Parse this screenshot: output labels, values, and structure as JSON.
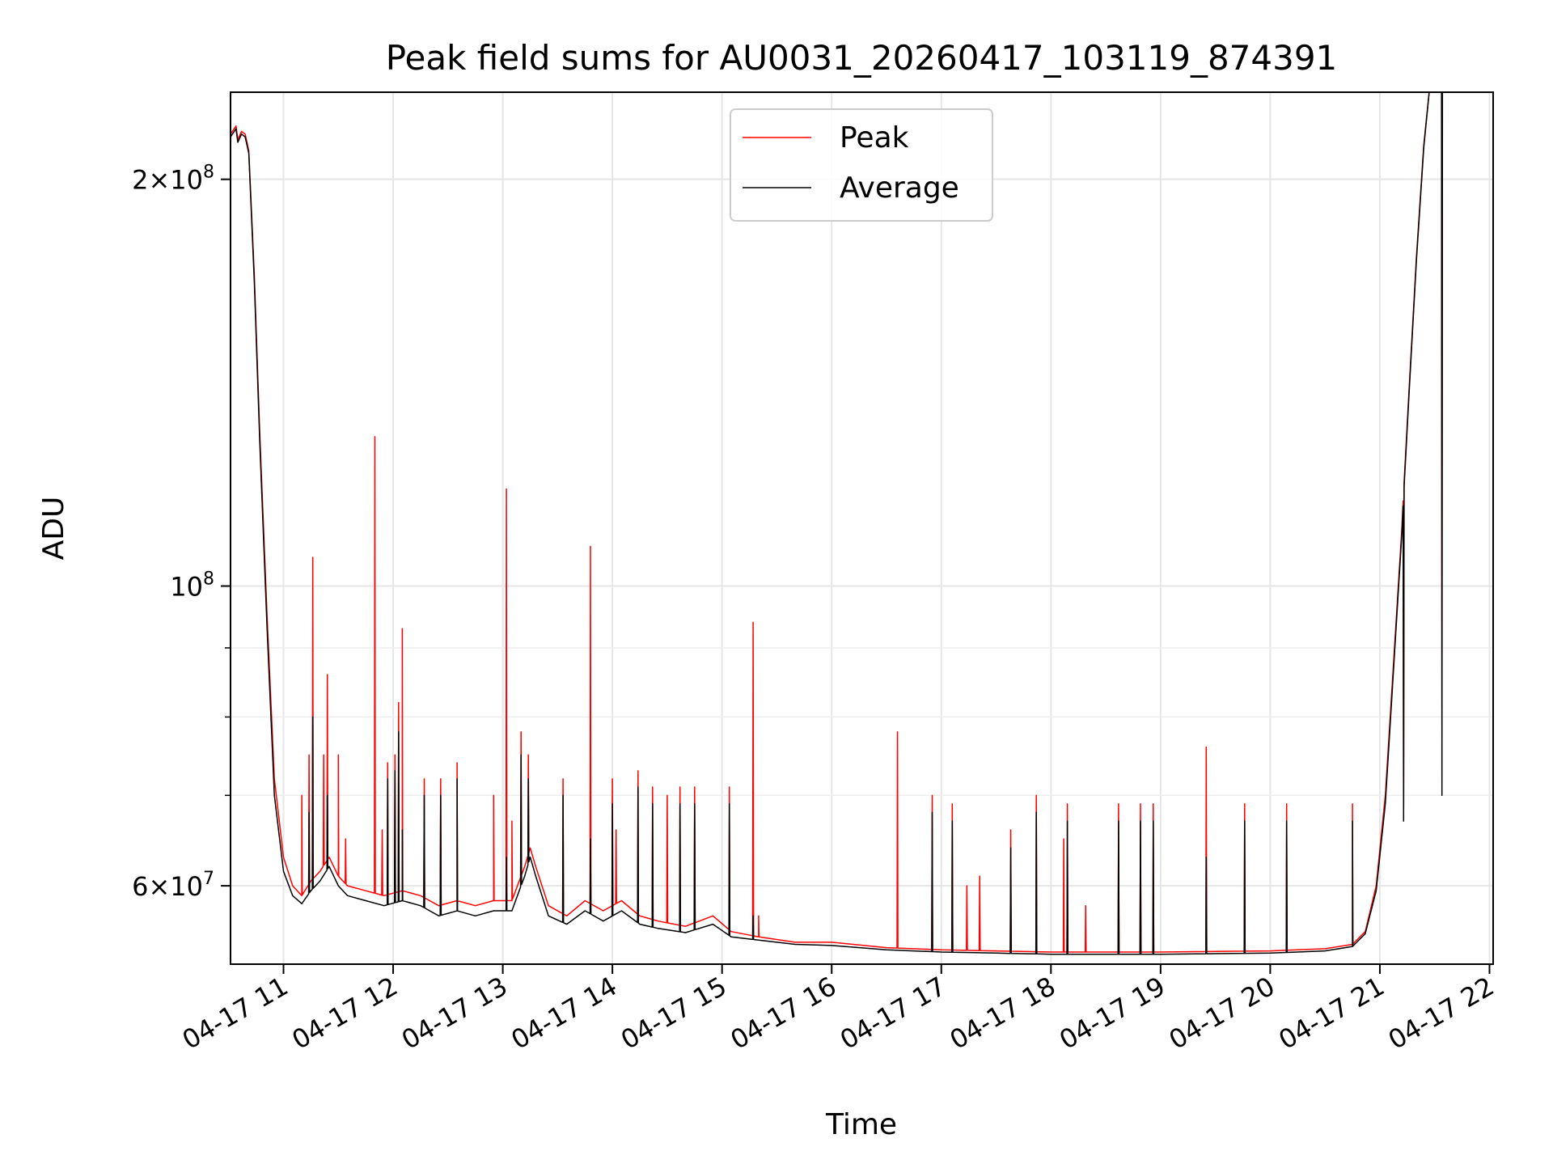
{
  "chart_data": {
    "type": "line",
    "title": "Peak field sums for AU0031_20260417_103119_874391",
    "xlabel": "Time",
    "ylabel": "ADU",
    "yscale": "log",
    "grid": true,
    "legend_placement": "upper-center",
    "xlim": [
      "2026-04-17 10:31",
      "2026-04-17 22:02"
    ],
    "ylim": [
      52500000,
      232000000
    ],
    "x_ticks": [
      {
        "value": "2026-04-17 11:00",
        "label": "04-17 11"
      },
      {
        "value": "2026-04-17 12:00",
        "label": "04-17 12"
      },
      {
        "value": "2026-04-17 13:00",
        "label": "04-17 13"
      },
      {
        "value": "2026-04-17 14:00",
        "label": "04-17 14"
      },
      {
        "value": "2026-04-17 15:00",
        "label": "04-17 15"
      },
      {
        "value": "2026-04-17 16:00",
        "label": "04-17 16"
      },
      {
        "value": "2026-04-17 17:00",
        "label": "04-17 17"
      },
      {
        "value": "2026-04-17 18:00",
        "label": "04-17 18"
      },
      {
        "value": "2026-04-17 19:00",
        "label": "04-17 19"
      },
      {
        "value": "2026-04-17 20:00",
        "label": "04-17 20"
      },
      {
        "value": "2026-04-17 21:00",
        "label": "04-17 21"
      },
      {
        "value": "2026-04-17 22:00",
        "label": "04-17 22"
      }
    ],
    "y_major_ticks": [
      {
        "value": 60000000,
        "mant": "6",
        "exp": "7"
      },
      {
        "value": 100000000,
        "mant": "",
        "exp": "8"
      },
      {
        "value": 200000000,
        "mant": "2",
        "exp": "8"
      }
    ],
    "y_minor_ticks": [
      70000000,
      80000000,
      90000000
    ],
    "series": [
      {
        "name": "Peak",
        "color": "#ff0000",
        "baseline": [
          [
            "2026-04-17 10:31",
            216000000
          ],
          [
            "2026-04-17 10:34",
            219000000
          ],
          [
            "2026-04-17 10:35",
            214000000
          ],
          [
            "2026-04-17 10:37",
            217000000
          ],
          [
            "2026-04-17 10:39",
            216000000
          ],
          [
            "2026-04-17 10:41",
            210000000
          ],
          [
            "2026-04-17 10:44",
            170000000
          ],
          [
            "2026-04-17 10:47",
            130000000
          ],
          [
            "2026-04-17 10:51",
            95000000
          ],
          [
            "2026-04-17 10:55",
            72000000
          ],
          [
            "2026-04-17 11:00",
            63000000
          ],
          [
            "2026-04-17 11:05",
            60000000
          ],
          [
            "2026-04-17 11:10",
            59000000
          ],
          [
            "2026-04-17 11:15",
            60500000
          ],
          [
            "2026-04-17 11:20",
            61500000
          ],
          [
            "2026-04-17 11:25",
            63000000
          ],
          [
            "2026-04-17 11:30",
            61000000
          ],
          [
            "2026-04-17 11:35",
            60000000
          ],
          [
            "2026-04-17 11:45",
            59500000
          ],
          [
            "2026-04-17 11:55",
            59000000
          ],
          [
            "2026-04-17 12:05",
            59500000
          ],
          [
            "2026-04-17 12:15",
            59000000
          ],
          [
            "2026-04-17 12:25",
            58000000
          ],
          [
            "2026-04-17 12:35",
            58500000
          ],
          [
            "2026-04-17 12:45",
            58000000
          ],
          [
            "2026-04-17 12:55",
            58500000
          ],
          [
            "2026-04-17 13:05",
            58500000
          ],
          [
            "2026-04-17 13:12",
            62000000
          ],
          [
            "2026-04-17 13:15",
            64000000
          ],
          [
            "2026-04-17 13:18",
            62000000
          ],
          [
            "2026-04-17 13:25",
            58000000
          ],
          [
            "2026-04-17 13:35",
            57000000
          ],
          [
            "2026-04-17 13:45",
            58500000
          ],
          [
            "2026-04-17 13:55",
            57500000
          ],
          [
            "2026-04-17 14:05",
            58500000
          ],
          [
            "2026-04-17 14:15",
            57000000
          ],
          [
            "2026-04-17 14:25",
            56500000
          ],
          [
            "2026-04-17 14:40",
            56000000
          ],
          [
            "2026-04-17 14:55",
            57000000
          ],
          [
            "2026-04-17 15:05",
            55500000
          ],
          [
            "2026-04-17 15:20",
            55000000
          ],
          [
            "2026-04-17 15:40",
            54500000
          ],
          [
            "2026-04-17 16:00",
            54500000
          ],
          [
            "2026-04-17 16:30",
            54000000
          ],
          [
            "2026-04-17 17:00",
            53800000
          ],
          [
            "2026-04-17 17:30",
            53700000
          ],
          [
            "2026-04-17 18:00",
            53600000
          ],
          [
            "2026-04-17 19:00",
            53600000
          ],
          [
            "2026-04-17 20:00",
            53700000
          ],
          [
            "2026-04-17 20:30",
            53900000
          ],
          [
            "2026-04-17 20:45",
            54300000
          ],
          [
            "2026-04-17 20:52",
            55500000
          ],
          [
            "2026-04-17 20:58",
            60000000
          ],
          [
            "2026-04-17 21:03",
            70000000
          ],
          [
            "2026-04-17 21:08",
            90000000
          ],
          [
            "2026-04-17 21:12",
            110000000
          ],
          [
            "2026-04-17 21:16",
            140000000
          ],
          [
            "2026-04-17 21:20",
            175000000
          ],
          [
            "2026-04-17 21:24",
            212000000
          ],
          [
            "2026-04-17 21:27",
            232000000
          ]
        ],
        "spikes": [
          [
            "2026-04-17 11:10",
            70000000
          ],
          [
            "2026-04-17 11:14",
            75000000
          ],
          [
            "2026-04-17 11:16",
            105000000
          ],
          [
            "2026-04-17 11:22",
            75000000
          ],
          [
            "2026-04-17 11:24",
            86000000
          ],
          [
            "2026-04-17 11:30",
            75000000
          ],
          [
            "2026-04-17 11:34",
            65000000
          ],
          [
            "2026-04-17 11:50",
            129000000
          ],
          [
            "2026-04-17 11:54",
            66000000
          ],
          [
            "2026-04-17 11:57",
            74000000
          ],
          [
            "2026-04-17 12:01",
            75000000
          ],
          [
            "2026-04-17 12:03",
            82000000
          ],
          [
            "2026-04-17 12:05",
            93000000
          ],
          [
            "2026-04-17 12:17",
            72000000
          ],
          [
            "2026-04-17 12:26",
            72000000
          ],
          [
            "2026-04-17 12:35",
            74000000
          ],
          [
            "2026-04-17 12:55",
            70000000
          ],
          [
            "2026-04-17 13:02",
            118000000
          ],
          [
            "2026-04-17 13:05",
            67000000
          ],
          [
            "2026-04-17 13:10",
            78000000
          ],
          [
            "2026-04-17 13:14",
            75000000
          ],
          [
            "2026-04-17 13:33",
            72000000
          ],
          [
            "2026-04-17 13:48",
            107000000
          ],
          [
            "2026-04-17 14:00",
            72000000
          ],
          [
            "2026-04-17 14:02",
            66000000
          ],
          [
            "2026-04-17 14:14",
            73000000
          ],
          [
            "2026-04-17 14:22",
            71000000
          ],
          [
            "2026-04-17 14:30",
            70000000
          ],
          [
            "2026-04-17 14:37",
            71000000
          ],
          [
            "2026-04-17 14:45",
            71000000
          ],
          [
            "2026-04-17 15:04",
            71000000
          ],
          [
            "2026-04-17 15:17",
            94000000
          ],
          [
            "2026-04-17 15:20",
            57000000
          ],
          [
            "2026-04-17 16:36",
            78000000
          ],
          [
            "2026-04-17 16:55",
            70000000
          ],
          [
            "2026-04-17 17:06",
            69000000
          ],
          [
            "2026-04-17 17:14",
            60000000
          ],
          [
            "2026-04-17 17:21",
            61000000
          ],
          [
            "2026-04-17 17:38",
            66000000
          ],
          [
            "2026-04-17 17:52",
            70000000
          ],
          [
            "2026-04-17 18:07",
            65000000
          ],
          [
            "2026-04-17 18:09",
            69000000
          ],
          [
            "2026-04-17 18:19",
            58000000
          ],
          [
            "2026-04-17 18:37",
            69000000
          ],
          [
            "2026-04-17 18:49",
            69000000
          ],
          [
            "2026-04-17 18:56",
            69000000
          ],
          [
            "2026-04-17 19:25",
            76000000
          ],
          [
            "2026-04-17 19:46",
            69000000
          ],
          [
            "2026-04-17 20:09",
            69000000
          ],
          [
            "2026-04-17 20:45",
            69000000
          ],
          [
            "2026-04-17 21:13",
            69000000
          ],
          [
            "2026-04-17 21:34",
            81000000
          ]
        ]
      },
      {
        "name": "Average",
        "color": "#000000",
        "baseline": [
          [
            "2026-04-17 10:31",
            215000000
          ],
          [
            "2026-04-17 10:34",
            218000000
          ],
          [
            "2026-04-17 10:35",
            213000000
          ],
          [
            "2026-04-17 10:37",
            216000000
          ],
          [
            "2026-04-17 10:39",
            215000000
          ],
          [
            "2026-04-17 10:41",
            209000000
          ],
          [
            "2026-04-17 10:44",
            168000000
          ],
          [
            "2026-04-17 10:47",
            128000000
          ],
          [
            "2026-04-17 10:51",
            93000000
          ],
          [
            "2026-04-17 10:55",
            70000000
          ],
          [
            "2026-04-17 11:00",
            61500000
          ],
          [
            "2026-04-17 11:05",
            59000000
          ],
          [
            "2026-04-17 11:10",
            58200000
          ],
          [
            "2026-04-17 11:15",
            59500000
          ],
          [
            "2026-04-17 11:20",
            60500000
          ],
          [
            "2026-04-17 11:25",
            62000000
          ],
          [
            "2026-04-17 11:30",
            60000000
          ],
          [
            "2026-04-17 11:35",
            59000000
          ],
          [
            "2026-04-17 11:45",
            58500000
          ],
          [
            "2026-04-17 11:55",
            58000000
          ],
          [
            "2026-04-17 12:05",
            58500000
          ],
          [
            "2026-04-17 12:15",
            58000000
          ],
          [
            "2026-04-17 12:25",
            57000000
          ],
          [
            "2026-04-17 12:35",
            57500000
          ],
          [
            "2026-04-17 12:45",
            57000000
          ],
          [
            "2026-04-17 12:55",
            57500000
          ],
          [
            "2026-04-17 13:05",
            57500000
          ],
          [
            "2026-04-17 13:12",
            61000000
          ],
          [
            "2026-04-17 13:15",
            63000000
          ],
          [
            "2026-04-17 13:18",
            61000000
          ],
          [
            "2026-04-17 13:25",
            57000000
          ],
          [
            "2026-04-17 13:35",
            56200000
          ],
          [
            "2026-04-17 13:45",
            57500000
          ],
          [
            "2026-04-17 13:55",
            56500000
          ],
          [
            "2026-04-17 14:05",
            57500000
          ],
          [
            "2026-04-17 14:15",
            56200000
          ],
          [
            "2026-04-17 14:25",
            55800000
          ],
          [
            "2026-04-17 14:40",
            55400000
          ],
          [
            "2026-04-17 14:55",
            56200000
          ],
          [
            "2026-04-17 15:05",
            55000000
          ],
          [
            "2026-04-17 15:20",
            54700000
          ],
          [
            "2026-04-17 15:40",
            54300000
          ],
          [
            "2026-04-17 16:00",
            54200000
          ],
          [
            "2026-04-17 16:30",
            53800000
          ],
          [
            "2026-04-17 17:00",
            53600000
          ],
          [
            "2026-04-17 17:30",
            53500000
          ],
          [
            "2026-04-17 18:00",
            53400000
          ],
          [
            "2026-04-17 19:00",
            53400000
          ],
          [
            "2026-04-17 20:00",
            53500000
          ],
          [
            "2026-04-17 20:30",
            53700000
          ],
          [
            "2026-04-17 20:45",
            54100000
          ],
          [
            "2026-04-17 20:52",
            55300000
          ],
          [
            "2026-04-17 20:58",
            59500000
          ],
          [
            "2026-04-17 21:03",
            69000000
          ],
          [
            "2026-04-17 21:08",
            89000000
          ],
          [
            "2026-04-17 21:12",
            109000000
          ],
          [
            "2026-04-17 21:16",
            139000000
          ],
          [
            "2026-04-17 21:20",
            174000000
          ],
          [
            "2026-04-17 21:24",
            211000000
          ],
          [
            "2026-04-17 21:27",
            232000000
          ]
        ],
        "spikes": [
          [
            "2026-04-17 11:14",
            68000000
          ],
          [
            "2026-04-17 11:16",
            80000000
          ],
          [
            "2026-04-17 11:24",
            70000000
          ],
          [
            "2026-04-17 11:57",
            72000000
          ],
          [
            "2026-04-17 12:01",
            73000000
          ],
          [
            "2026-04-17 12:03",
            78000000
          ],
          [
            "2026-04-17 12:05",
            66000000
          ],
          [
            "2026-04-17 12:17",
            70000000
          ],
          [
            "2026-04-17 12:26",
            70000000
          ],
          [
            "2026-04-17 12:35",
            72000000
          ],
          [
            "2026-04-17 13:02",
            63000000
          ],
          [
            "2026-04-17 13:10",
            75000000
          ],
          [
            "2026-04-17 13:14",
            72000000
          ],
          [
            "2026-04-17 13:33",
            70000000
          ],
          [
            "2026-04-17 13:48",
            65000000
          ],
          [
            "2026-04-17 14:00",
            69000000
          ],
          [
            "2026-04-17 14:14",
            71000000
          ],
          [
            "2026-04-17 14:22",
            69000000
          ],
          [
            "2026-04-17 14:37",
            69000000
          ],
          [
            "2026-04-17 14:45",
            69000000
          ],
          [
            "2026-04-17 15:04",
            69000000
          ],
          [
            "2026-04-17 15:17",
            57000000
          ],
          [
            "2026-04-17 16:55",
            68000000
          ],
          [
            "2026-04-17 17:06",
            67000000
          ],
          [
            "2026-04-17 17:38",
            64000000
          ],
          [
            "2026-04-17 17:52",
            68000000
          ],
          [
            "2026-04-17 18:09",
            67000000
          ],
          [
            "2026-04-17 18:37",
            67000000
          ],
          [
            "2026-04-17 18:49",
            67000000
          ],
          [
            "2026-04-17 18:56",
            67000000
          ],
          [
            "2026-04-17 19:25",
            63000000
          ],
          [
            "2026-04-17 19:46",
            67000000
          ],
          [
            "2026-04-17 20:09",
            67000000
          ],
          [
            "2026-04-17 20:45",
            67000000
          ],
          [
            "2026-04-17 21:13",
            67000000
          ],
          [
            "2026-04-17 21:34",
            70000000
          ]
        ]
      }
    ]
  }
}
